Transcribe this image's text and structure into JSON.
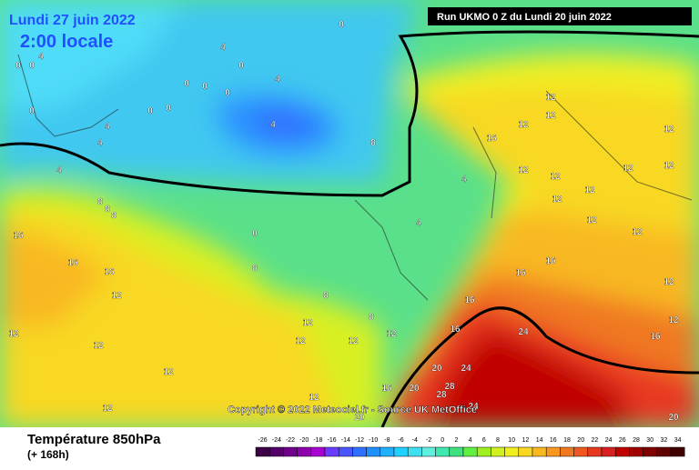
{
  "header": {
    "date": "Lundi 27 juin 2022",
    "time": "2:00 locale",
    "run": "Run UKMO 0 Z du Lundi 20 juin 2022"
  },
  "copyright": "Copyright © 2022 Meteociel.fr - Source UK MetOffice",
  "footer": {
    "title": "Température 850hPa",
    "lead": "(+ 168h)"
  },
  "legend": {
    "ticks": [
      -26,
      -24,
      -22,
      -20,
      -18,
      -16,
      -14,
      -12,
      -10,
      -8,
      -6,
      -4,
      -2,
      0,
      2,
      4,
      6,
      8,
      10,
      12,
      14,
      16,
      18,
      20,
      22,
      24,
      26,
      28,
      30,
      32,
      34
    ],
    "colors": [
      "#3c0046",
      "#55006a",
      "#70008c",
      "#8c00ae",
      "#a800d0",
      "#6a3cff",
      "#4a55ff",
      "#3070ff",
      "#2090ff",
      "#20b0ff",
      "#20d0ff",
      "#40e0f0",
      "#60f0e0",
      "#40e8b0",
      "#40e080",
      "#60f040",
      "#a0f020",
      "#d0f020",
      "#f0f020",
      "#f8d820",
      "#f8b820",
      "#f89820",
      "#f07820",
      "#f05820",
      "#e83820",
      "#d82020",
      "#c00000",
      "#a00000",
      "#800000",
      "#600000",
      "#400000"
    ]
  },
  "map": {
    "labels": [
      "0",
      "4",
      "0",
      "0",
      "4",
      "0",
      "4",
      "0",
      "0",
      "0",
      "4",
      "0",
      "0",
      "4",
      "4",
      "0",
      "4",
      "4",
      "8",
      "8",
      "8",
      "8",
      "16",
      "16",
      "16",
      "12",
      "12",
      "12",
      "12",
      "12",
      "0",
      "8",
      "8",
      "8",
      "12",
      "12",
      "16",
      "12",
      "12",
      "12",
      "12",
      "12",
      "12",
      "12",
      "12",
      "12",
      "16",
      "16",
      "16",
      "4",
      "12",
      "12",
      "12",
      "12",
      "16",
      "24",
      "20",
      "24",
      "28",
      "28",
      "20",
      "16",
      "20",
      "20",
      "16",
      "12",
      "24",
      "12",
      "12",
      "12"
    ]
  }
}
